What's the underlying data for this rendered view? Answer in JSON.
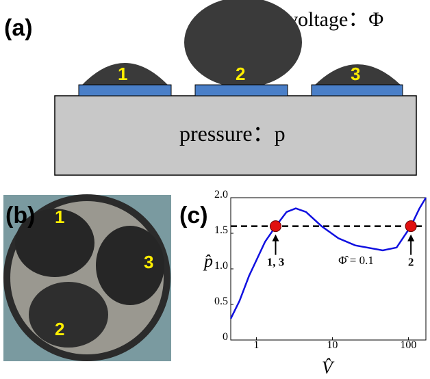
{
  "panel_a": {
    "label": "(a)",
    "voltage": "voltage：Φ",
    "pressure": "pressure：p",
    "drops": [
      "1",
      "2",
      "3"
    ]
  },
  "panel_b": {
    "label": "(b)",
    "drops": [
      "1",
      "3",
      "2"
    ]
  },
  "panel_c": {
    "label": "(c)"
  },
  "chart_data": {
    "type": "line",
    "x_label": "V̂",
    "y_label": "p̂",
    "log_x": true,
    "xlim": [
      0.46,
      170
    ],
    "ylim": [
      0,
      2.0
    ],
    "xticks": [
      1,
      10,
      100
    ],
    "yticks": [
      0,
      0.5,
      {
        "value": 1,
        "label": "1.0"
      },
      1.5,
      {
        "value": 2,
        "label": "2.0"
      }
    ],
    "series": [
      {
        "color": "#1010e0",
        "x": [
          0.46,
          0.6,
          0.8,
          1,
          1.3,
          1.8,
          2.5,
          3.3,
          4.5,
          7.2,
          12,
          20,
          46,
          70,
          108,
          140,
          170
        ],
        "values": [
          0.3,
          0.55,
          0.9,
          1.12,
          1.38,
          1.6,
          1.8,
          1.85,
          1.8,
          1.6,
          1.43,
          1.33,
          1.26,
          1.3,
          1.6,
          1.85,
          2.0
        ]
      }
    ],
    "markers": {
      "color": "#e01010",
      "x": [
        1.79,
        108
      ],
      "values": [
        1.6,
        1.6
      ]
    },
    "reference_line": 1.6,
    "annotations": [
      "1, 3",
      "2",
      "Φ̂ = 0.1"
    ]
  }
}
